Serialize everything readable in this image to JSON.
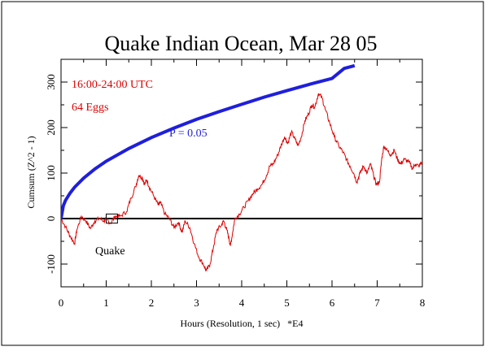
{
  "chart_data": {
    "type": "line",
    "title": "Quake Indian Ocean, Mar 28 05",
    "xlabel": "Hours (Resolution, 1 sec)   *E4",
    "ylabel": "Cumsum (Z^2 - 1)",
    "xlim": [
      0,
      8
    ],
    "ylim": [
      -150,
      350
    ],
    "x_ticks": [
      "0",
      "1",
      "2",
      "3",
      "4",
      "5",
      "6",
      "7",
      "8"
    ],
    "y_ticks": [
      "-100",
      "0",
      "100",
      "200",
      "300"
    ],
    "grid": false,
    "annotations": {
      "time_window": "16:00-24:00 UTC",
      "eggs": "64 Eggs",
      "p_label": "P = 0.05",
      "event_label": "Quake"
    },
    "event_marker": {
      "x_range": [
        1.0,
        1.25
      ],
      "y_range": [
        -10,
        10
      ]
    },
    "colors": {
      "cumsum": "#e00000",
      "p_curve": "#1f1fdd",
      "baseline": "#000000",
      "text_red": "#dd0000"
    },
    "series": [
      {
        "color": "#e00000",
        "points": [
          [
            0.0,
            0
          ],
          [
            0.1,
            -18
          ],
          [
            0.2,
            -38
          ],
          [
            0.3,
            -55
          ],
          [
            0.35,
            -25
          ],
          [
            0.45,
            5
          ],
          [
            0.55,
            -5
          ],
          [
            0.65,
            -22
          ],
          [
            0.75,
            -5
          ],
          [
            0.85,
            0
          ],
          [
            0.95,
            -5
          ],
          [
            1.0,
            -2
          ],
          [
            1.1,
            -10
          ],
          [
            1.2,
            5
          ],
          [
            1.3,
            5
          ],
          [
            1.45,
            15
          ],
          [
            1.55,
            45
          ],
          [
            1.65,
            70
          ],
          [
            1.72,
            95
          ],
          [
            1.8,
            90
          ],
          [
            1.85,
            75
          ],
          [
            1.9,
            85
          ],
          [
            1.95,
            70
          ],
          [
            2.05,
            50
          ],
          [
            2.15,
            30
          ],
          [
            2.2,
            35
          ],
          [
            2.3,
            10
          ],
          [
            2.4,
            0
          ],
          [
            2.5,
            -20
          ],
          [
            2.6,
            -8
          ],
          [
            2.68,
            -30
          ],
          [
            2.75,
            -5
          ],
          [
            2.85,
            -20
          ],
          [
            2.95,
            -55
          ],
          [
            3.05,
            -85
          ],
          [
            3.15,
            -100
          ],
          [
            3.22,
            -115
          ],
          [
            3.3,
            -100
          ],
          [
            3.38,
            -60
          ],
          [
            3.45,
            -25
          ],
          [
            3.55,
            -15
          ],
          [
            3.6,
            -5
          ],
          [
            3.67,
            -25
          ],
          [
            3.72,
            -45
          ],
          [
            3.75,
            -60
          ],
          [
            3.8,
            -30
          ],
          [
            3.85,
            0
          ],
          [
            3.95,
            10
          ],
          [
            4.05,
            25
          ],
          [
            4.15,
            40
          ],
          [
            4.25,
            55
          ],
          [
            4.35,
            65
          ],
          [
            4.45,
            75
          ],
          [
            4.55,
            95
          ],
          [
            4.62,
            115
          ],
          [
            4.7,
            120
          ],
          [
            4.8,
            140
          ],
          [
            4.87,
            160
          ],
          [
            4.95,
            180
          ],
          [
            5.02,
            165
          ],
          [
            5.1,
            190
          ],
          [
            5.18,
            175
          ],
          [
            5.25,
            160
          ],
          [
            5.32,
            180
          ],
          [
            5.4,
            215
          ],
          [
            5.48,
            230
          ],
          [
            5.55,
            250
          ],
          [
            5.62,
            245
          ],
          [
            5.7,
            275
          ],
          [
            5.78,
            265
          ],
          [
            5.85,
            240
          ],
          [
            5.95,
            210
          ],
          [
            6.05,
            180
          ],
          [
            6.15,
            160
          ],
          [
            6.25,
            145
          ],
          [
            6.32,
            130
          ],
          [
            6.4,
            115
          ],
          [
            6.48,
            100
          ],
          [
            6.55,
            80
          ],
          [
            6.62,
            100
          ],
          [
            6.7,
            115
          ],
          [
            6.78,
            100
          ],
          [
            6.85,
            120
          ],
          [
            6.92,
            95
          ],
          [
            6.98,
            75
          ],
          [
            7.05,
            80
          ],
          [
            7.1,
            130
          ],
          [
            7.15,
            160
          ],
          [
            7.22,
            150
          ],
          [
            7.3,
            140
          ],
          [
            7.38,
            150
          ],
          [
            7.45,
            130
          ],
          [
            7.52,
            120
          ],
          [
            7.6,
            130
          ],
          [
            7.7,
            125
          ],
          [
            7.78,
            110
          ],
          [
            7.85,
            120
          ],
          [
            7.92,
            115
          ],
          [
            8.0,
            125
          ]
        ]
      },
      {
        "name": "P = 0.05",
        "color": "#1f1fdd",
        "points": [
          [
            0.0,
            0
          ],
          [
            0.05,
            28
          ],
          [
            0.1,
            40
          ],
          [
            0.2,
            56
          ],
          [
            0.3,
            69
          ],
          [
            0.5,
            89
          ],
          [
            0.75,
            109
          ],
          [
            1.0,
            126
          ],
          [
            1.5,
            154
          ],
          [
            2.0,
            178
          ],
          [
            2.5,
            199
          ],
          [
            3.0,
            218
          ],
          [
            3.5,
            235
          ],
          [
            4.0,
            251
          ],
          [
            4.5,
            267
          ],
          [
            5.0,
            281
          ],
          [
            5.5,
            295
          ],
          [
            6.0,
            308
          ],
          [
            6.5,
            321
          ],
          [
            6.27,
            350
          ]
        ]
      }
    ]
  }
}
